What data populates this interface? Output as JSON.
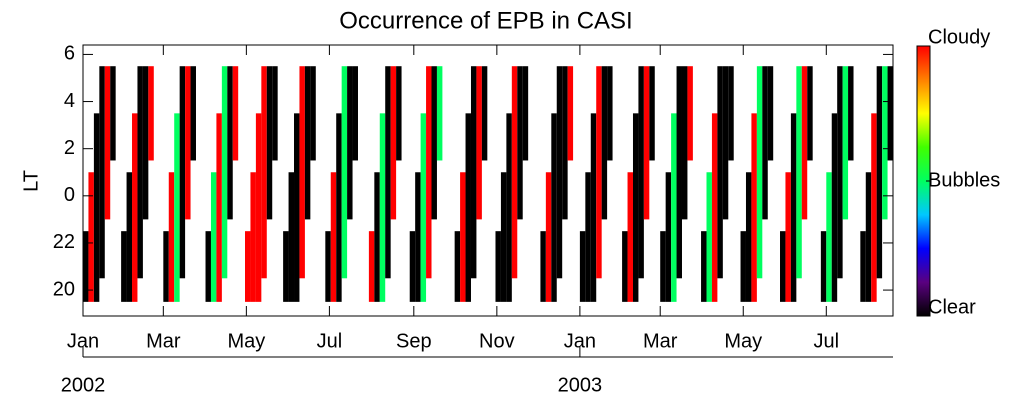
{
  "chart_data": {
    "type": "range_bar",
    "title": "Occurrence of EPB in CASI",
    "ylabel": "LT",
    "xlim": [
      0,
      595
    ],
    "ylim": [
      18.9,
      30.4
    ],
    "xticks": [
      {
        "value": 0,
        "label": "Jan"
      },
      {
        "value": 59,
        "label": "Mar"
      },
      {
        "value": 120,
        "label": "May"
      },
      {
        "value": 181,
        "label": "Jul"
      },
      {
        "value": 243,
        "label": "Sep"
      },
      {
        "value": 304,
        "label": "Nov"
      },
      {
        "value": 365,
        "label": "Jan"
      },
      {
        "value": 424,
        "label": "Mar"
      },
      {
        "value": 485,
        "label": "May"
      },
      {
        "value": 546,
        "label": "Jul"
      }
    ],
    "years": [
      {
        "value": 0,
        "label": "2002"
      },
      {
        "value": 365,
        "label": "2003"
      }
    ],
    "yticks": [
      20,
      22,
      {
        "value": 24,
        "label": "0"
      },
      {
        "value": 26,
        "label": "2"
      },
      {
        "value": 28,
        "label": "4"
      },
      {
        "value": 30,
        "label": "6"
      }
    ],
    "colorbar": {
      "zlim": [
        0,
        2
      ],
      "ticks": [
        {
          "value": 0,
          "label": "Clear"
        },
        {
          "value": 1,
          "label": "Bubbles"
        },
        {
          "value": 2,
          "label": "Cloudy"
        }
      ],
      "colormap": [
        "#000000",
        "#5a0080",
        "#0000ff",
        "#00c8ff",
        "#00ff60",
        "#40ff00",
        "#ffff00",
        "#ff8000",
        "#ff0000"
      ]
    },
    "bars": [
      [
        0,
        19.5,
        22.5,
        0
      ],
      [
        4,
        19.5,
        25,
        2
      ],
      [
        8,
        19.5,
        27.5,
        0
      ],
      [
        12,
        20.5,
        29.5,
        0
      ],
      [
        16,
        23,
        29.5,
        2
      ],
      [
        20,
        25.5,
        29.5,
        0
      ],
      [
        28,
        19.5,
        22.5,
        0
      ],
      [
        32,
        19.5,
        25,
        0
      ],
      [
        36,
        19.5,
        27.5,
        2
      ],
      [
        40,
        20.5,
        29.5,
        0
      ],
      [
        44,
        23,
        29.5,
        0
      ],
      [
        48,
        25.5,
        29.5,
        2
      ],
      [
        59,
        19.5,
        22.5,
        0
      ],
      [
        63,
        19.5,
        25,
        2
      ],
      [
        67,
        19.5,
        27.5,
        1
      ],
      [
        71,
        20.5,
        29.5,
        0
      ],
      [
        75,
        23,
        29.5,
        2
      ],
      [
        79,
        25.5,
        29.5,
        0
      ],
      [
        90,
        19.5,
        22.5,
        0
      ],
      [
        94,
        19.5,
        25,
        1
      ],
      [
        98,
        19.5,
        27.5,
        2
      ],
      [
        102,
        20.5,
        29.5,
        1
      ],
      [
        106,
        23,
        29.5,
        0
      ],
      [
        110,
        25.5,
        29.5,
        2
      ],
      [
        119,
        19.5,
        22.5,
        2
      ],
      [
        123,
        19.5,
        25,
        2
      ],
      [
        127,
        19.5,
        27.5,
        2
      ],
      [
        131,
        20.5,
        29.5,
        2
      ],
      [
        135,
        23,
        29.5,
        0
      ],
      [
        139,
        25.5,
        29.5,
        0
      ],
      [
        147,
        19.5,
        22.5,
        0
      ],
      [
        151,
        19.5,
        25,
        0
      ],
      [
        155,
        19.5,
        27.5,
        0
      ],
      [
        159,
        20.5,
        29.5,
        2
      ],
      [
        163,
        23,
        29.5,
        0
      ],
      [
        167,
        25.5,
        29.5,
        0
      ],
      [
        178,
        19.5,
        22.5,
        0
      ],
      [
        182,
        19.5,
        25,
        2
      ],
      [
        186,
        19.5,
        27.5,
        0
      ],
      [
        190,
        20.5,
        29.5,
        1
      ],
      [
        194,
        23,
        29.5,
        0
      ],
      [
        198,
        25.5,
        29.5,
        0
      ],
      [
        210,
        19.5,
        22.5,
        2
      ],
      [
        214,
        19.5,
        25,
        0
      ],
      [
        218,
        19.5,
        27.5,
        1
      ],
      [
        222,
        20.5,
        29.5,
        0
      ],
      [
        226,
        23,
        29.5,
        2
      ],
      [
        230,
        25.5,
        29.5,
        0
      ],
      [
        240,
        19.5,
        22.5,
        0
      ],
      [
        244,
        19.5,
        25,
        0
      ],
      [
        248,
        19.5,
        27.5,
        1
      ],
      [
        252,
        20.5,
        29.5,
        2
      ],
      [
        256,
        23,
        29.5,
        0
      ],
      [
        260,
        25.5,
        29.5,
        1
      ],
      [
        273,
        19.5,
        22.5,
        0
      ],
      [
        277,
        19.5,
        25,
        2
      ],
      [
        281,
        19.5,
        27.5,
        0
      ],
      [
        285,
        20.5,
        29.5,
        0
      ],
      [
        289,
        23,
        29.5,
        2
      ],
      [
        293,
        25.5,
        29.5,
        0
      ],
      [
        303,
        19.5,
        22.5,
        0
      ],
      [
        307,
        19.5,
        25,
        0
      ],
      [
        311,
        19.5,
        27.5,
        0
      ],
      [
        315,
        20.5,
        29.5,
        2
      ],
      [
        319,
        23,
        29.5,
        0
      ],
      [
        323,
        25.5,
        29.5,
        0
      ],
      [
        336,
        19.5,
        22.5,
        0
      ],
      [
        340,
        19.5,
        25,
        2
      ],
      [
        344,
        19.5,
        27.5,
        0
      ],
      [
        348,
        20.5,
        29.5,
        0
      ],
      [
        352,
        23,
        29.5,
        0
      ],
      [
        356,
        25.5,
        29.5,
        2
      ],
      [
        365,
        19.5,
        22.5,
        0
      ],
      [
        369,
        19.5,
        25,
        0
      ],
      [
        373,
        19.5,
        27.5,
        0
      ],
      [
        377,
        20.5,
        29.5,
        2
      ],
      [
        381,
        23,
        29.5,
        0
      ],
      [
        385,
        25.5,
        29.5,
        0
      ],
      [
        396,
        19.5,
        22.5,
        0
      ],
      [
        400,
        19.5,
        25,
        2
      ],
      [
        404,
        19.5,
        27.5,
        0
      ],
      [
        408,
        20.5,
        29.5,
        0
      ],
      [
        412,
        23,
        29.5,
        2
      ],
      [
        416,
        25.5,
        29.5,
        0
      ],
      [
        424,
        19.5,
        22.5,
        0
      ],
      [
        428,
        19.5,
        25,
        0
      ],
      [
        432,
        19.5,
        27.5,
        1
      ],
      [
        436,
        20.5,
        29.5,
        0
      ],
      [
        440,
        23,
        29.5,
        0
      ],
      [
        444,
        25.5,
        29.5,
        2
      ],
      [
        454,
        19.5,
        22.5,
        0
      ],
      [
        458,
        19.5,
        25,
        1
      ],
      [
        462,
        19.5,
        27.5,
        2
      ],
      [
        466,
        20.5,
        29.5,
        0
      ],
      [
        470,
        23,
        29.5,
        0
      ],
      [
        474,
        25.5,
        29.5,
        0
      ],
      [
        483,
        19.5,
        22.5,
        0
      ],
      [
        487,
        19.5,
        25,
        0
      ],
      [
        491,
        19.5,
        27.5,
        2
      ],
      [
        495,
        20.5,
        29.5,
        1
      ],
      [
        499,
        23,
        29.5,
        0
      ],
      [
        503,
        25.5,
        29.5,
        0
      ],
      [
        512,
        19.5,
        22.5,
        0
      ],
      [
        516,
        19.5,
        25,
        2
      ],
      [
        520,
        19.5,
        27.5,
        0
      ],
      [
        524,
        20.5,
        29.5,
        1
      ],
      [
        528,
        23,
        29.5,
        2
      ],
      [
        532,
        25.5,
        29.5,
        0
      ],
      [
        542,
        19.5,
        22.5,
        0
      ],
      [
        546,
        19.5,
        25,
        1
      ],
      [
        550,
        19.5,
        27.5,
        0
      ],
      [
        554,
        20.5,
        29.5,
        0
      ],
      [
        558,
        23,
        29.5,
        1
      ],
      [
        562,
        25.5,
        29.5,
        0
      ],
      [
        571,
        19.5,
        22.5,
        0
      ],
      [
        575,
        19.5,
        25,
        0
      ],
      [
        579,
        19.5,
        27.5,
        2
      ],
      [
        583,
        20.5,
        29.5,
        0
      ],
      [
        587,
        23,
        29.5,
        1
      ],
      [
        591,
        25.5,
        29.5,
        0
      ]
    ]
  }
}
